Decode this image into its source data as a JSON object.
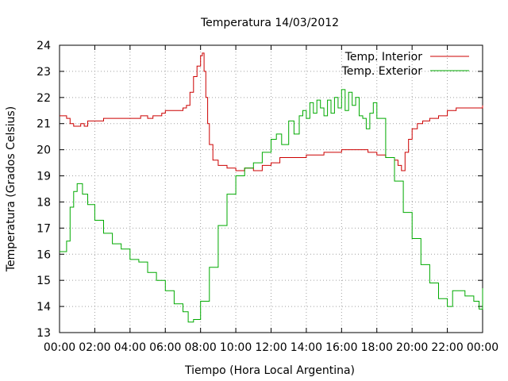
{
  "chart_data": {
    "type": "line",
    "title": "Temperatura 14/03/2012",
    "xlabel": "Tiempo (Hora Local Argentina)",
    "ylabel": "Temperatura (Grados Celsius)",
    "xlim": [
      0,
      24
    ],
    "ylim": [
      13,
      24
    ],
    "x_unit": "hours",
    "x_ticks": [
      "00:00",
      "02:00",
      "04:00",
      "06:00",
      "08:00",
      "10:00",
      "12:00",
      "14:00",
      "16:00",
      "18:00",
      "20:00",
      "22:00",
      "00:00"
    ],
    "y_ticks": [
      "13",
      "14",
      "15",
      "16",
      "17",
      "18",
      "19",
      "20",
      "21",
      "22",
      "23",
      "24"
    ],
    "grid": true,
    "legend_position": "top-right",
    "series": [
      {
        "name": "Temp. Interior",
        "color": "#cc0000",
        "x": [
          0,
          0.4,
          0.6,
          0.8,
          1.0,
          1.2,
          1.4,
          1.6,
          1.8,
          2.0,
          2.5,
          3.0,
          3.5,
          4.0,
          4.3,
          4.6,
          5.0,
          5.3,
          5.5,
          5.8,
          6.0,
          6.5,
          7.0,
          7.2,
          7.4,
          7.6,
          7.8,
          8.0,
          8.1,
          8.2,
          8.3,
          8.4,
          8.5,
          8.7,
          9.0,
          9.5,
          10.0,
          10.5,
          11.0,
          11.5,
          12.0,
          12.5,
          13.0,
          13.5,
          14.0,
          14.5,
          15.0,
          15.5,
          16.0,
          16.5,
          17.0,
          17.5,
          18.0,
          18.5,
          19.0,
          19.2,
          19.4,
          19.6,
          19.8,
          20.0,
          20.3,
          20.6,
          21.0,
          21.5,
          22.0,
          22.5,
          23.0,
          23.5,
          24.0
        ],
        "y": [
          21.3,
          21.2,
          21.0,
          20.9,
          20.9,
          21.0,
          20.9,
          21.1,
          21.1,
          21.1,
          21.2,
          21.2,
          21.2,
          21.2,
          21.2,
          21.3,
          21.2,
          21.3,
          21.3,
          21.4,
          21.5,
          21.5,
          21.6,
          21.7,
          22.2,
          22.8,
          23.2,
          23.6,
          23.7,
          23.0,
          22.0,
          21.0,
          20.2,
          19.6,
          19.4,
          19.3,
          19.2,
          19.3,
          19.2,
          19.4,
          19.5,
          19.7,
          19.7,
          19.7,
          19.8,
          19.8,
          19.9,
          19.9,
          20.0,
          20.0,
          20.0,
          19.9,
          19.8,
          19.7,
          19.6,
          19.4,
          19.2,
          19.9,
          20.4,
          20.8,
          21.0,
          21.1,
          21.2,
          21.3,
          21.5,
          21.6,
          21.6,
          21.6,
          21.7
        ]
      },
      {
        "name": "Temp. Exterior",
        "color": "#00aa00",
        "x": [
          0,
          0.2,
          0.4,
          0.6,
          0.8,
          1.0,
          1.3,
          1.6,
          2.0,
          2.5,
          3.0,
          3.5,
          4.0,
          4.5,
          5.0,
          5.5,
          6.0,
          6.5,
          7.0,
          7.3,
          7.6,
          8.0,
          8.5,
          9.0,
          9.5,
          10.0,
          10.5,
          11.0,
          11.5,
          12.0,
          12.3,
          12.6,
          13.0,
          13.3,
          13.6,
          13.8,
          14.0,
          14.2,
          14.4,
          14.6,
          14.8,
          15.0,
          15.2,
          15.4,
          15.6,
          15.8,
          16.0,
          16.2,
          16.4,
          16.6,
          16.8,
          17.0,
          17.2,
          17.4,
          17.6,
          17.8,
          18.0,
          18.5,
          19.0,
          19.5,
          20.0,
          20.5,
          21.0,
          21.5,
          22.0,
          22.3,
          22.6,
          23.0,
          23.5,
          23.8,
          24.0
        ],
        "y": [
          16.1,
          16.1,
          16.5,
          17.8,
          18.4,
          18.7,
          18.3,
          17.9,
          17.3,
          16.8,
          16.4,
          16.2,
          15.8,
          15.7,
          15.3,
          15.0,
          14.6,
          14.1,
          13.8,
          13.4,
          13.5,
          14.2,
          15.5,
          17.1,
          18.3,
          19.0,
          19.3,
          19.5,
          19.9,
          20.4,
          20.6,
          20.2,
          21.1,
          20.6,
          21.3,
          21.5,
          21.2,
          21.8,
          21.4,
          21.9,
          21.6,
          21.3,
          21.9,
          21.4,
          22.0,
          21.6,
          22.3,
          21.5,
          22.2,
          21.7,
          22.0,
          21.3,
          21.2,
          20.8,
          21.4,
          21.8,
          21.2,
          19.7,
          18.8,
          17.6,
          16.6,
          15.6,
          14.9,
          14.3,
          14.0,
          14.6,
          14.6,
          14.4,
          14.2,
          13.9,
          14.7
        ]
      }
    ]
  }
}
